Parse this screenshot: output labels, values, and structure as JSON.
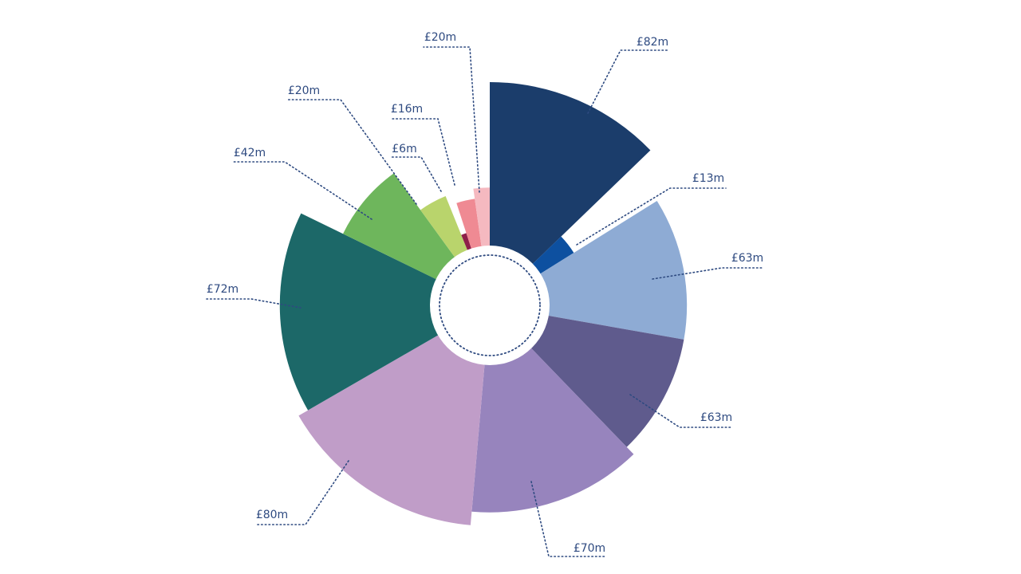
{
  "chart_data": {
    "type": "polar-area",
    "title": "",
    "unit": "£m",
    "segments": [
      {
        "label": "£82m",
        "value": 82,
        "color": "#1b3d6b"
      },
      {
        "label": "£13m",
        "value": 13,
        "color": "#0d50a0"
      },
      {
        "label": "£63m",
        "value": 63,
        "color": "#8eabd4"
      },
      {
        "label": "£63m",
        "value": 63,
        "color": "#5f5b8d"
      },
      {
        "label": "£70m",
        "value": 70,
        "color": "#9784bd"
      },
      {
        "label": "£80m",
        "value": 80,
        "color": "#c09dc8"
      },
      {
        "label": "£72m",
        "value": 72,
        "color": "#1c6868"
      },
      {
        "label": "£42m",
        "value": 42,
        "color": "#6eb65c"
      },
      {
        "label": "£20m",
        "value": 20,
        "color": "#b9d46c"
      },
      {
        "label": "£6m",
        "value": 6,
        "color": "#8d2049"
      },
      {
        "label": "£16m",
        "value": 16,
        "color": "#ef8a93"
      },
      {
        "label": "£20m",
        "value": 20,
        "color": "#f5b9c0"
      }
    ]
  }
}
